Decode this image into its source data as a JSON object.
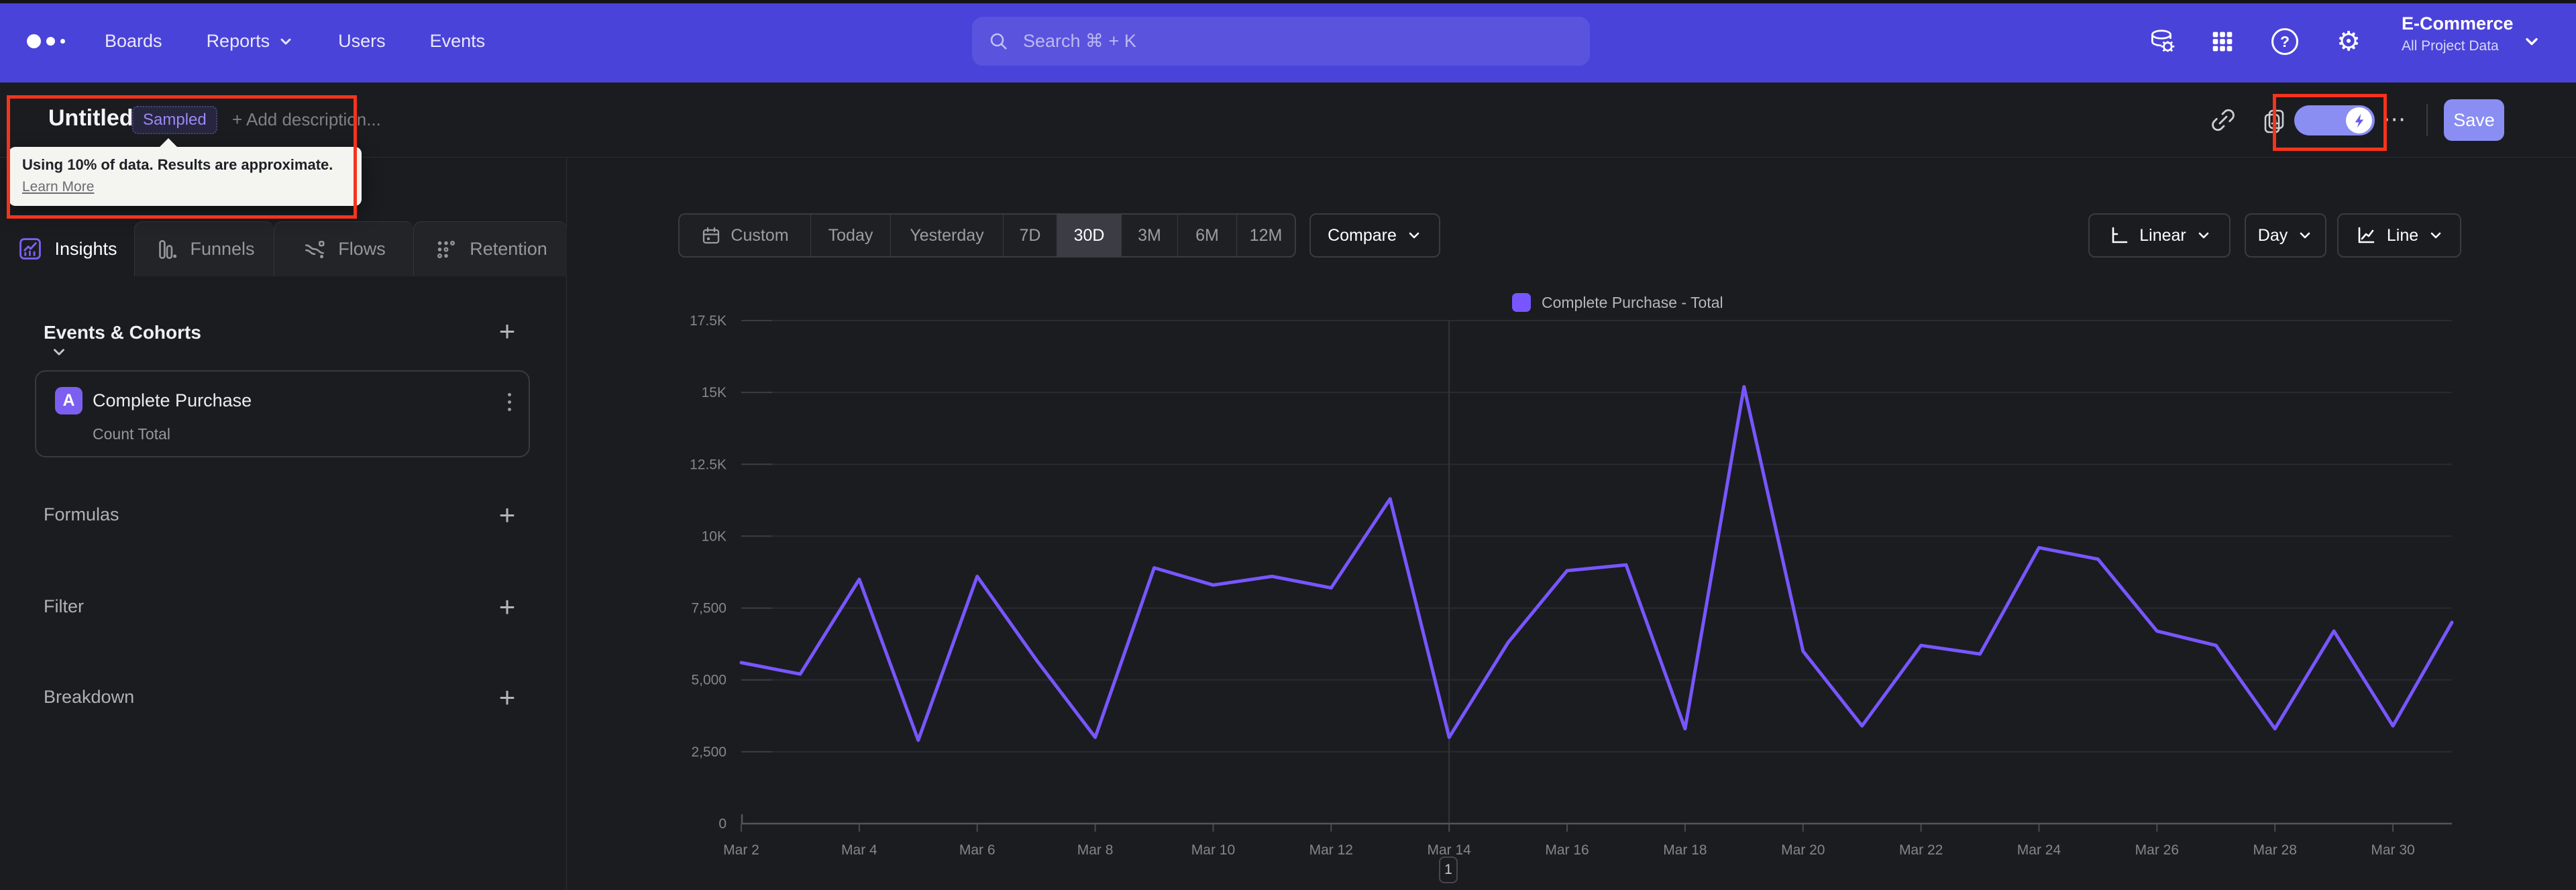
{
  "nav": {
    "menu": [
      "Boards",
      "Reports",
      "Users",
      "Events"
    ],
    "menu_dropdown_index": 1,
    "search_placeholder": "Search  ⌘ + K",
    "project": {
      "name": "E-Commerce",
      "scope": "All Project Data"
    },
    "icon_names": [
      "data-management-icon",
      "apps-grid-icon",
      "help-icon",
      "settings-gear-icon"
    ]
  },
  "title_bar": {
    "title": "Untitled",
    "badge": "Sampled",
    "description_placeholder": "+ Add description...",
    "more_label": "⋯",
    "save_label": "Save",
    "icon_names": [
      "share-link-icon",
      "add-to-board-icon",
      "sampling-toggle",
      "more-options",
      "save-button"
    ]
  },
  "sampling_tooltip": {
    "message": "Using 10% of data. Results are approximate.",
    "link": "Learn More"
  },
  "tabs": [
    {
      "label": "Insights",
      "active": true
    },
    {
      "label": "Funnels",
      "active": false
    },
    {
      "label": "Flows",
      "active": false
    },
    {
      "label": "Retention",
      "active": false
    }
  ],
  "query_panel": {
    "events_header": "Events & Cohorts",
    "event_card": {
      "letter": "A",
      "name": "Complete Purchase",
      "metric": "Count Total"
    },
    "sections": [
      "Formulas",
      "Filter",
      "Breakdown"
    ]
  },
  "toolbar": {
    "date_ranges": [
      "Custom",
      "Today",
      "Yesterday",
      "7D",
      "30D",
      "3M",
      "6M",
      "12M"
    ],
    "active_range": "30D",
    "compare_label": "Compare",
    "scale_label": "Linear",
    "interval_label": "Day",
    "chart_type_label": "Line"
  },
  "chart_data": {
    "type": "line",
    "legend": "Complete Purchase - Total",
    "series_color": "#7856ff",
    "categories": [
      "Mar 2",
      "Mar 3",
      "Mar 4",
      "Mar 5",
      "Mar 6",
      "Mar 7",
      "Mar 8",
      "Mar 9",
      "Mar 10",
      "Mar 11",
      "Mar 12",
      "Mar 13",
      "Mar 14",
      "Mar 15",
      "Mar 16",
      "Mar 17",
      "Mar 18",
      "Mar 19",
      "Mar 20",
      "Mar 21",
      "Mar 22",
      "Mar 23",
      "Mar 24",
      "Mar 25",
      "Mar 26",
      "Mar 27",
      "Mar 28",
      "Mar 29",
      "Mar 30",
      "Mar 31"
    ],
    "values": [
      5600,
      5200,
      8500,
      2900,
      8600,
      5700,
      3000,
      8900,
      8300,
      8600,
      8200,
      11300,
      3000,
      6300,
      8800,
      9000,
      3300,
      15200,
      6000,
      3400,
      6200,
      5900,
      9600,
      9200,
      6700,
      6200,
      3300,
      6700,
      3400,
      7000
    ],
    "ylim": [
      0,
      17500
    ],
    "y_tick_step": 2500,
    "y_tick_labels": [
      "0",
      "2,500",
      "5,000",
      "7,500",
      "10K",
      "12.5K",
      "15K",
      "17.5K"
    ],
    "x_tick_every": 2,
    "divider_x": "Mar 14",
    "grid": true,
    "legend_position": "top-center",
    "xlabel": "",
    "ylabel": ""
  },
  "pagination": {
    "page": "1"
  },
  "icon_glyphs": {
    "plus": "+",
    "more": "⋯",
    "gear": "⚙",
    "help": "?"
  },
  "colors": {
    "nav_bg": "#4a43d9",
    "accent_purple": "#7c5ff0",
    "line_purple": "#7856ff",
    "save_bg": "#8a8df2",
    "annotation_red": "#f5341c",
    "page_bg": "#1b1c20"
  }
}
